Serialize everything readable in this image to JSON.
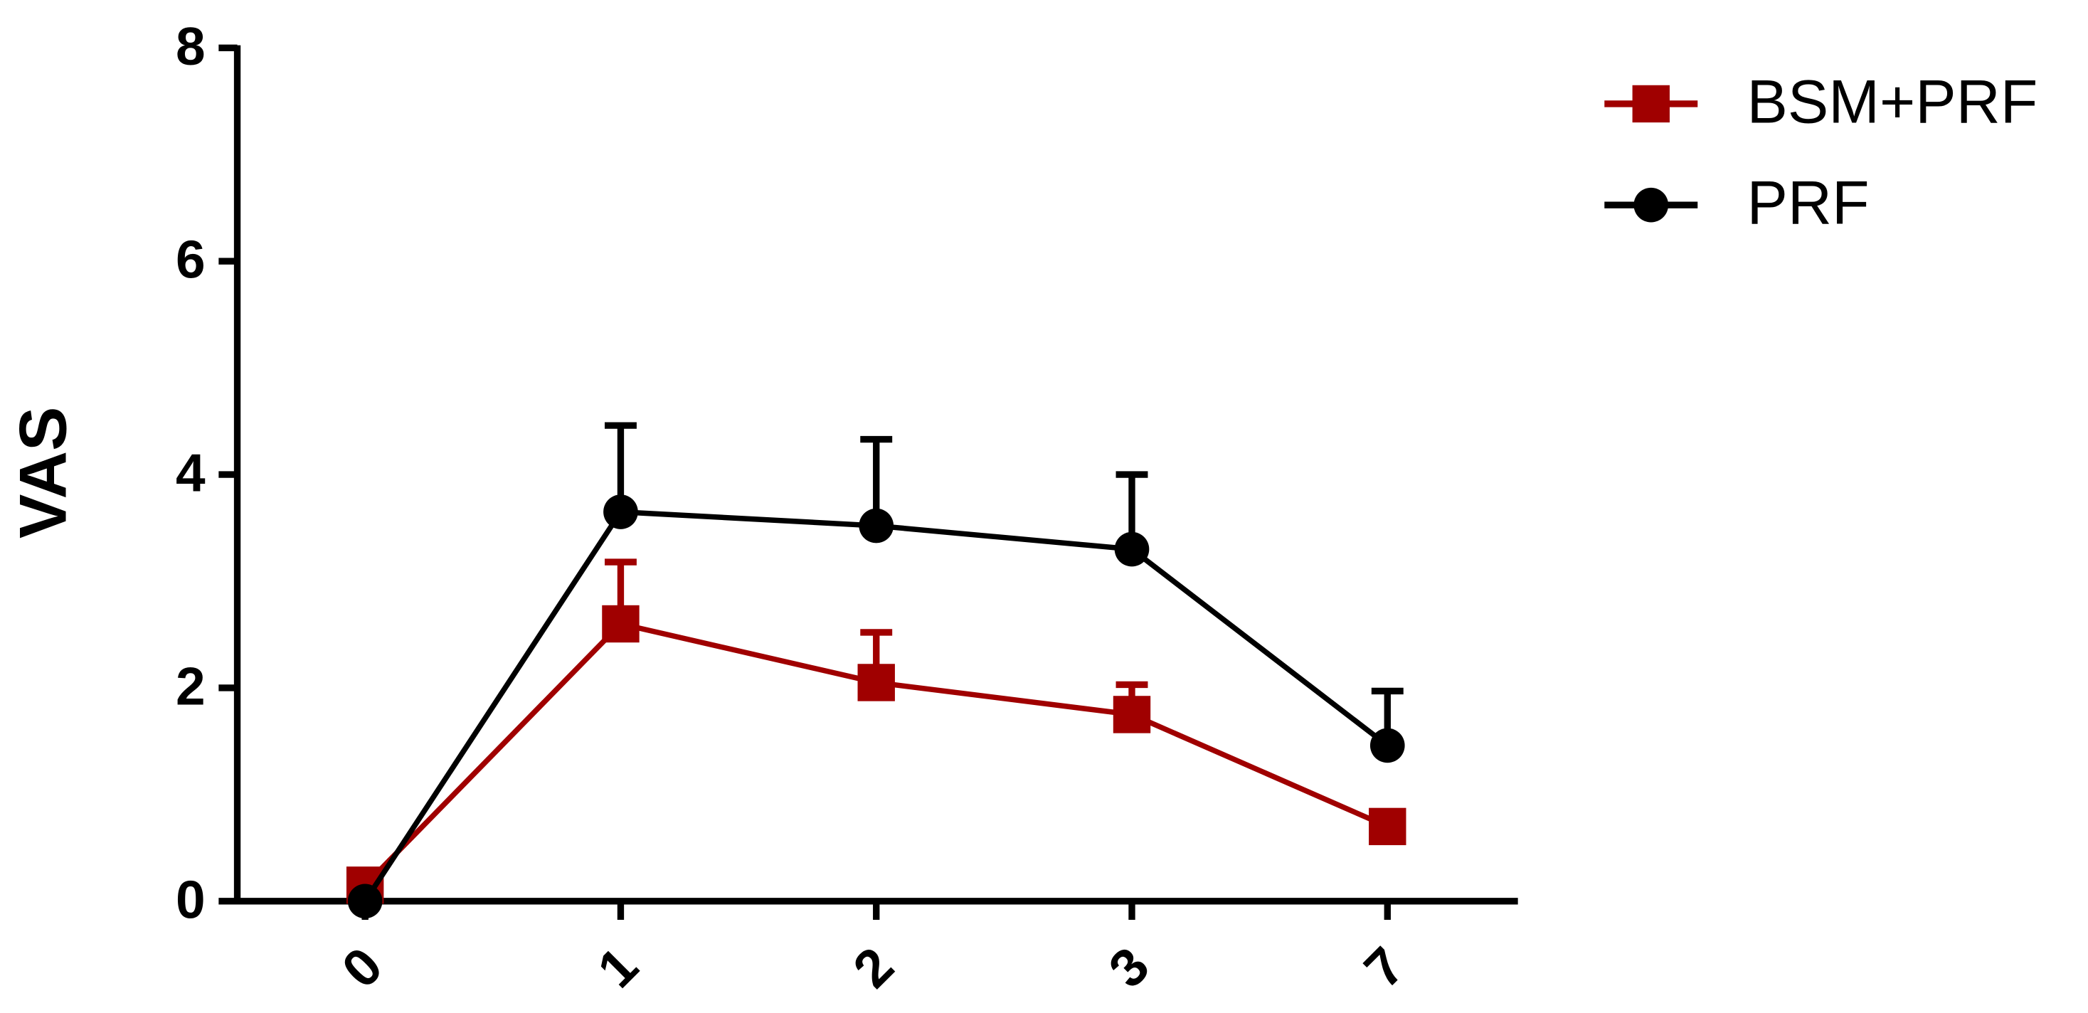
{
  "chart_data": {
    "type": "line",
    "y_label": "VAS",
    "categories": [
      "0",
      "1",
      "2",
      "3",
      "7"
    ],
    "series": [
      {
        "name": "BSM+PRF",
        "color": "#a00000",
        "marker": "square",
        "values": [
          0.15,
          2.6,
          2.05,
          1.75,
          0.7
        ],
        "errors": [
          0,
          0.58,
          0.47,
          0.28,
          0
        ]
      },
      {
        "name": "PRF",
        "color": "#000000",
        "marker": "circle",
        "values": [
          0,
          3.65,
          3.52,
          3.3,
          1.46
        ],
        "errors": [
          0,
          0.81,
          0.81,
          0.7,
          0.51
        ]
      }
    ],
    "ylim": [
      0,
      8
    ],
    "yticks": [
      0,
      2,
      4,
      6,
      8
    ],
    "legend": "top-right"
  }
}
